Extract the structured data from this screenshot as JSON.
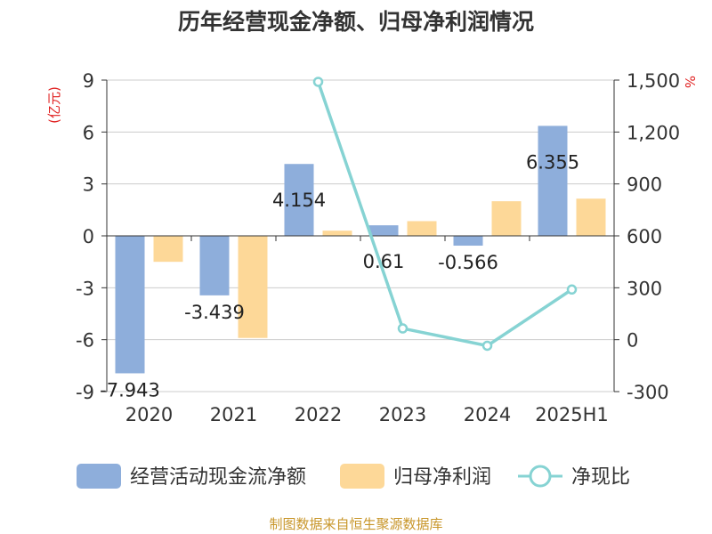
{
  "chart_data": {
    "type": "bar",
    "title": "历年经营现金净额、归母净利润情况",
    "categories": [
      "2020",
      "2021",
      "2022",
      "2023",
      "2024",
      "2025H1"
    ],
    "y_left": {
      "unit": "(亿元)",
      "ticks": [
        "9",
        "6",
        "3",
        "0",
        "-3",
        "-6",
        "-9"
      ],
      "ylim": [
        -9,
        9
      ]
    },
    "y_right": {
      "unit": "%",
      "ticks": [
        "1,500",
        "1,200",
        "900",
        "600",
        "300",
        "0",
        "-300"
      ],
      "ylim": [
        -300,
        1500
      ]
    },
    "series": [
      {
        "name": "经营活动现金流净额",
        "type": "bar",
        "axis": "left",
        "color": "#8eaedb",
        "values": [
          -7.943,
          -3.439,
          4.154,
          0.61,
          -0.566,
          6.355
        ],
        "labels": [
          "-7.943",
          "-3.439",
          "4.154",
          "0.61",
          "-0.566",
          "6.355"
        ]
      },
      {
        "name": "归母净利润",
        "type": "bar",
        "axis": "left",
        "color": "#fdd898",
        "values": [
          -1.5,
          -5.9,
          0.3,
          0.85,
          2.0,
          2.15
        ]
      },
      {
        "name": "净现比",
        "type": "line",
        "axis": "right",
        "color": "#86d3d3",
        "values": [
          null,
          null,
          1490,
          65,
          -35,
          290
        ]
      }
    ],
    "legend_position": "bottom",
    "grid": true
  },
  "source": "制图数据来自恒生聚源数据库"
}
